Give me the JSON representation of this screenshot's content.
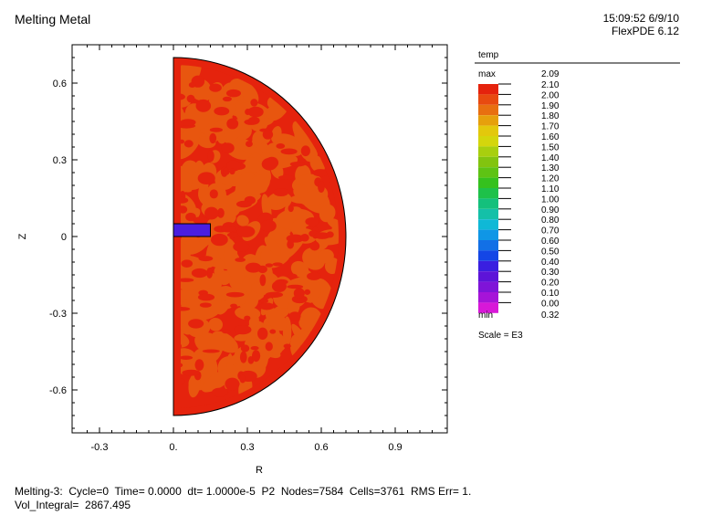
{
  "header": {
    "title": "Melting Metal",
    "time": "15:09:52 6/9/10",
    "version": "FlexPDE 6.12"
  },
  "footer": {
    "line1": "Melting-3:  Cycle=0  Time= 0.0000  dt= 1.0000e-5  P2  Nodes=7584  Cells=3761  RMS Err= 1.",
    "line2": "Vol_Integral=  2867.495"
  },
  "colors": {
    "outside": "#e5230d",
    "interior": "#e8560f",
    "insert": "#4a1ee0",
    "boundary": "#000000"
  },
  "chart_data": {
    "type": "heatmap",
    "title": "Melting Metal",
    "xlabel": "R",
    "ylabel": "Z",
    "xlim": [
      -0.4,
      1.1
    ],
    "ylim": [
      -0.8,
      0.75
    ],
    "x_ticks": [
      {
        "value": -0.3,
        "label": "-0.3"
      },
      {
        "value": 0,
        "label": "0."
      },
      {
        "value": 0.3,
        "label": "0.3"
      },
      {
        "value": 0.6,
        "label": "0.6"
      },
      {
        "value": 0.9,
        "label": "0.9"
      }
    ],
    "y_ticks": [
      {
        "value": 0.6,
        "label": "0.6"
      },
      {
        "value": 0.3,
        "label": "0.3"
      },
      {
        "value": 0,
        "label": "0"
      },
      {
        "value": -0.3,
        "label": "-0.3"
      },
      {
        "value": -0.6,
        "label": "-0.6"
      }
    ],
    "domain": {
      "shape": "half-disk",
      "radius": 0.7
    },
    "insert": {
      "r": [
        0,
        0.15
      ],
      "z": [
        0,
        0.05
      ]
    },
    "legend": {
      "variable": "temp",
      "max_label": "max",
      "max_value": "2.09",
      "min_label": "min",
      "min_value": "0.32",
      "scale": "Scale = E3",
      "levels": [
        {
          "label": "2.10",
          "color": "#e5230d"
        },
        {
          "label": "2.00",
          "color": "#e84a10"
        },
        {
          "label": "1.90",
          "color": "#e86f10"
        },
        {
          "label": "1.80",
          "color": "#e6a00c"
        },
        {
          "label": "1.70",
          "color": "#e3c80c"
        },
        {
          "label": "1.60",
          "color": "#d4d60c"
        },
        {
          "label": "1.50",
          "color": "#a8cf0e"
        },
        {
          "label": "1.40",
          "color": "#82c40f"
        },
        {
          "label": "1.30",
          "color": "#5ec314"
        },
        {
          "label": "1.20",
          "color": "#35c11e"
        },
        {
          "label": "1.10",
          "color": "#1ec14a"
        },
        {
          "label": "1.00",
          "color": "#14c07c"
        },
        {
          "label": "0.90",
          "color": "#14c0a8"
        },
        {
          "label": "0.80",
          "color": "#0fb8d6"
        },
        {
          "label": "0.70",
          "color": "#0f96e6"
        },
        {
          "label": "0.60",
          "color": "#1270e6"
        },
        {
          "label": "0.50",
          "color": "#1446e6"
        },
        {
          "label": "0.40",
          "color": "#3a1fe0"
        },
        {
          "label": "0.30",
          "color": "#5d14d8"
        },
        {
          "label": "0.20",
          "color": "#7f14d8"
        },
        {
          "label": "0.10",
          "color": "#a614d8"
        },
        {
          "label": "0.00",
          "color": "#d818d8"
        }
      ]
    }
  }
}
